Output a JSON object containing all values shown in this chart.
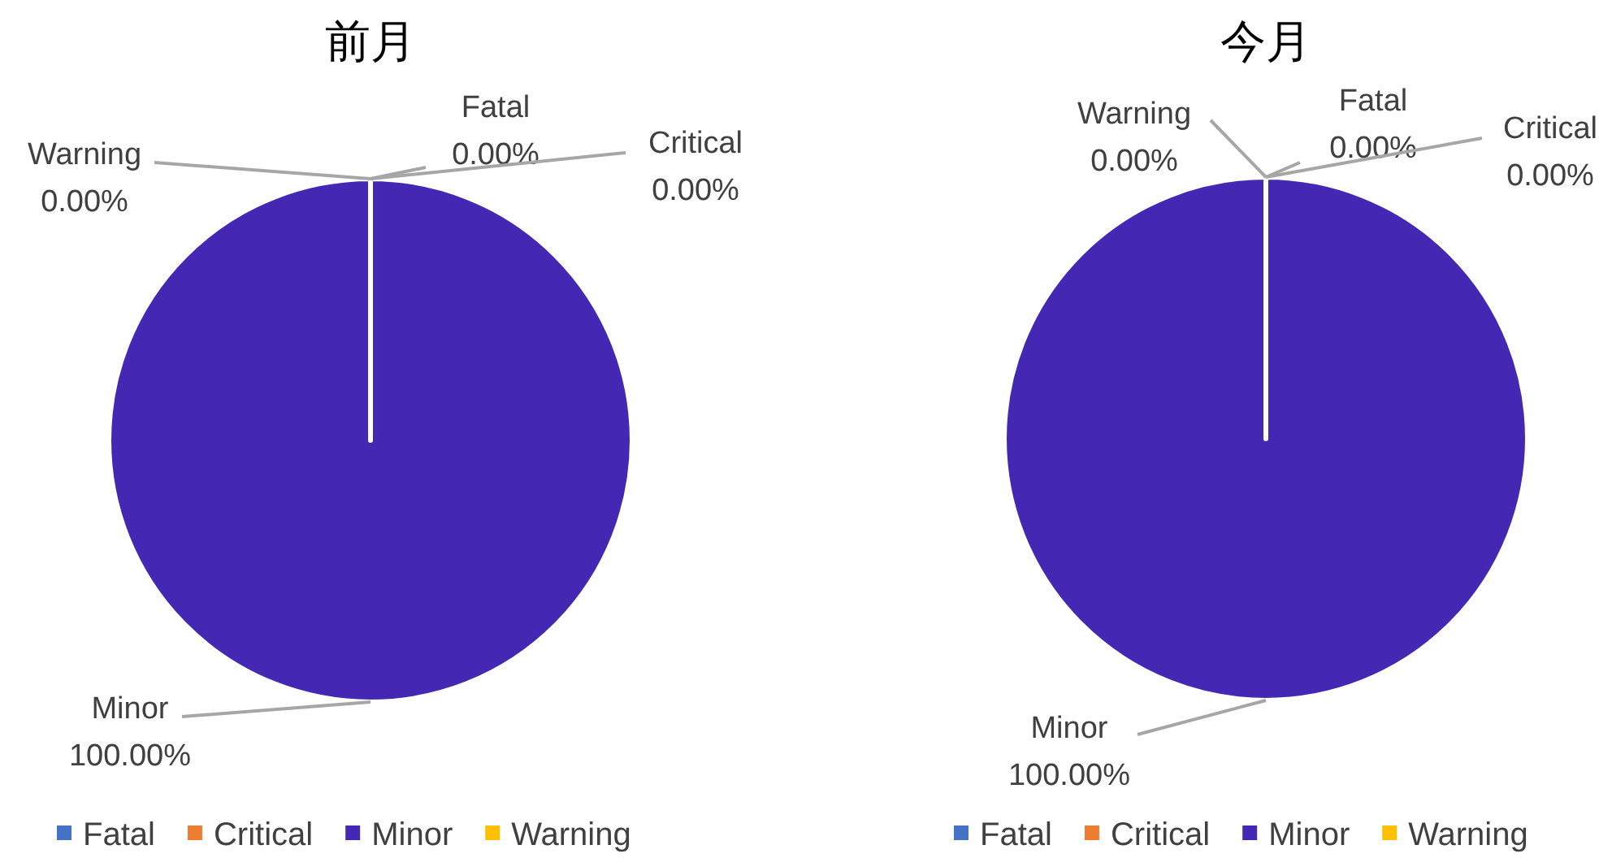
{
  "chart_data": [
    {
      "type": "pie",
      "title": "前月",
      "categories": [
        "Fatal",
        "Critical",
        "Minor",
        "Warning"
      ],
      "values": [
        0,
        0,
        100,
        0
      ],
      "value_labels": [
        "0.00%",
        "0.00%",
        "100.00%",
        "0.00%"
      ],
      "colors": [
        "#4472c4",
        "#ed7d31",
        "#4428b4",
        "#ffc000"
      ],
      "legend": "bottom"
    },
    {
      "type": "pie",
      "title": "今月",
      "categories": [
        "Fatal",
        "Critical",
        "Minor",
        "Warning"
      ],
      "values": [
        0,
        0,
        100,
        0
      ],
      "value_labels": [
        "0.00%",
        "0.00%",
        "100.00%",
        "0.00%"
      ],
      "colors": [
        "#4472c4",
        "#ed7d31",
        "#4428b4",
        "#ffc000"
      ],
      "legend": "bottom"
    }
  ]
}
